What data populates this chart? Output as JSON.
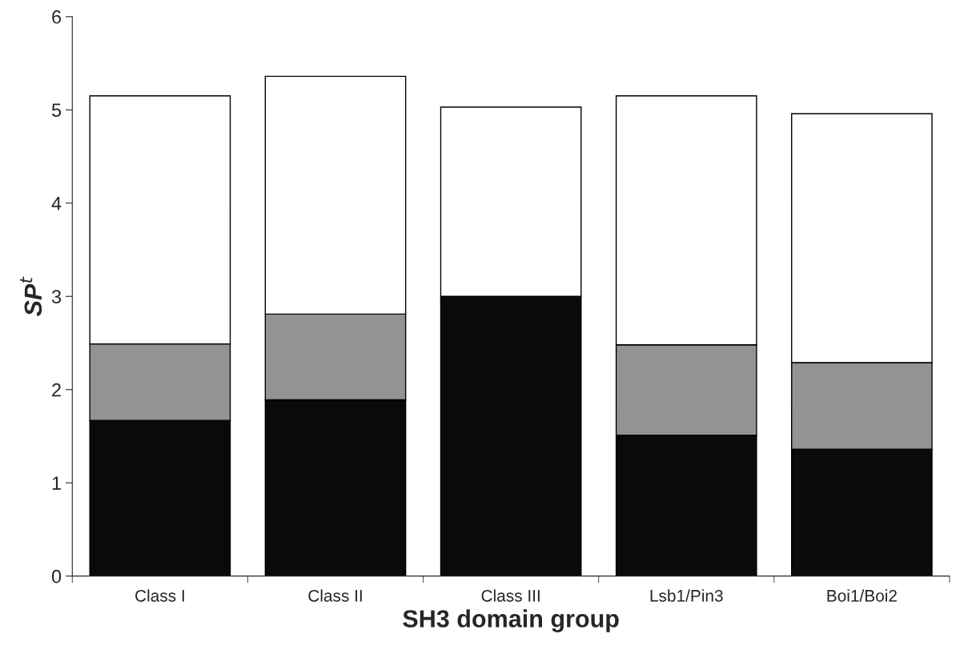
{
  "chart_data": {
    "type": "bar",
    "stacked": true,
    "categories": [
      "Class I",
      "Class II",
      "Class III",
      "Lsb1/Pin3",
      "Boi1/Boi2"
    ],
    "xlabel": "SH3 domain group",
    "ylabel": "SP$^{t}$",
    "series": [
      {
        "color": "#0a0a0a",
        "values": [
          1.67,
          1.89,
          3.0,
          1.51,
          1.36
        ]
      },
      {
        "color": "#939393",
        "values": [
          0.82,
          0.92,
          0,
          0.97,
          0.93
        ]
      },
      {
        "color": "#ffffff",
        "values": [
          2.66,
          2.55,
          2.03,
          2.67,
          2.67
        ]
      }
    ],
    "ylim": [
      0,
      6
    ],
    "yticks": [
      0,
      1,
      2,
      3,
      4,
      5,
      6
    ],
    "grid": false
  }
}
